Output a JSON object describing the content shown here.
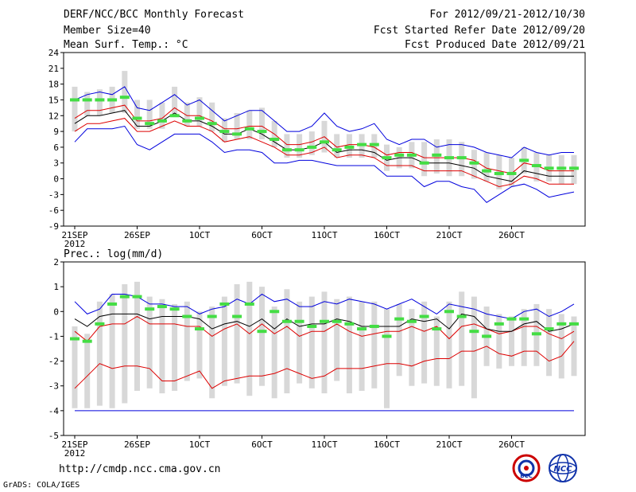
{
  "header": {
    "title": "DERF/NCC/BCC Monthly Forecast",
    "member_size": "Member Size=40",
    "variable": "Mean Surf. Temp.: °C",
    "period": "For 2012/09/21-2012/10/30",
    "started": "Fcst Started Refer Date 2012/09/20",
    "produced": "Fcst Produced Date 2012/09/21"
  },
  "footer": {
    "url": "http://cmdp.ncc.cma.gov.cn",
    "credit": "GrADS: COLA/IGES",
    "logo_bcc": "BCC",
    "logo_ncc": "NCC"
  },
  "colors": {
    "ensemble_max_min": "#0000dd",
    "percentile": "#dd0000",
    "mean": "#000000",
    "median": "#44dd44",
    "box": "#d8d8d8"
  },
  "chart_data": [
    {
      "type": "line",
      "title": "Mean Surf. Temp.: °C",
      "ylim": [
        -9,
        24
      ],
      "yticks": [
        "-9",
        "-6",
        "-3",
        "0",
        "3",
        "6",
        "9",
        "12",
        "15",
        "18",
        "21",
        "24"
      ],
      "xlim": [
        0,
        40
      ],
      "xticks": [
        {
          "day": 0,
          "label": "21SEP",
          "sub": "2012"
        },
        {
          "day": 5,
          "label": "26SEP"
        },
        {
          "day": 10,
          "label": "1OCT"
        },
        {
          "day": 15,
          "label": "6OCT"
        },
        {
          "day": 20,
          "label": "11OCT"
        },
        {
          "day": 25,
          "label": "16OCT"
        },
        {
          "day": 30,
          "label": "21OCT"
        },
        {
          "day": 35,
          "label": "26OCT"
        }
      ],
      "series": [
        {
          "name": "max",
          "color": "#0000dd",
          "values": [
            15.0,
            16.0,
            16.5,
            16.0,
            17.5,
            13.5,
            13.0,
            14.5,
            16.0,
            14.0,
            15.0,
            13.0,
            11.0,
            12.0,
            13.0,
            13.0,
            11.0,
            9.0,
            9.0,
            10.0,
            12.5,
            10.0,
            9.0,
            9.5,
            10.5,
            7.5,
            6.5,
            7.5,
            7.5,
            6.0,
            6.5,
            6.5,
            6.0,
            5.0,
            4.5,
            4.0,
            6.0,
            5.0,
            4.5,
            5.0,
            5.0
          ]
        },
        {
          "name": "upper percentile",
          "color": "#dd0000",
          "values": [
            11.5,
            13.0,
            13.0,
            13.5,
            14.0,
            11.0,
            11.0,
            11.5,
            13.5,
            12.0,
            12.0,
            11.0,
            9.5,
            9.5,
            10.0,
            10.0,
            8.5,
            6.5,
            6.5,
            7.0,
            8.0,
            6.0,
            6.5,
            6.5,
            6.0,
            4.5,
            5.0,
            5.0,
            4.0,
            4.0,
            4.0,
            4.0,
            3.5,
            2.0,
            1.5,
            1.0,
            3.0,
            2.5,
            1.5,
            1.5,
            1.5
          ]
        },
        {
          "name": "mean",
          "color": "#000000",
          "values": [
            10.5,
            12.0,
            12.0,
            12.5,
            13.0,
            10.0,
            10.0,
            11.0,
            12.5,
            11.0,
            11.0,
            10.0,
            8.5,
            8.5,
            9.5,
            8.5,
            7.0,
            5.5,
            5.5,
            6.0,
            7.0,
            5.0,
            5.5,
            5.5,
            5.0,
            3.5,
            4.0,
            4.0,
            3.0,
            3.0,
            3.0,
            2.5,
            2.0,
            0.5,
            0.0,
            -0.5,
            1.5,
            1.0,
            0.5,
            0.5,
            0.5
          ]
        },
        {
          "name": "lower percentile",
          "color": "#dd0000",
          "values": [
            9.0,
            10.5,
            10.5,
            11.0,
            11.5,
            9.0,
            9.0,
            10.0,
            11.0,
            10.0,
            10.0,
            9.0,
            7.0,
            7.5,
            8.0,
            7.0,
            6.0,
            4.5,
            4.5,
            5.0,
            6.0,
            4.0,
            4.5,
            4.5,
            4.0,
            2.5,
            2.5,
            2.5,
            1.5,
            1.5,
            1.5,
            1.5,
            0.5,
            -0.5,
            -1.5,
            -1.0,
            0.5,
            0.0,
            -1.0,
            -1.0,
            -1.0
          ]
        },
        {
          "name": "min",
          "color": "#0000dd",
          "values": [
            7.0,
            9.5,
            9.5,
            9.5,
            10.0,
            6.5,
            5.5,
            7.0,
            8.5,
            8.5,
            8.5,
            7.0,
            5.0,
            5.5,
            5.5,
            5.0,
            3.0,
            3.0,
            3.5,
            3.5,
            3.0,
            2.5,
            2.5,
            2.5,
            2.5,
            0.5,
            0.5,
            0.5,
            -1.5,
            -0.5,
            -0.5,
            -1.5,
            -2.0,
            -4.5,
            -3.0,
            -1.5,
            -1.0,
            -2.0,
            -3.5,
            -3.0,
            -2.5
          ]
        }
      ],
      "boxes": {
        "low": [
          9.0,
          12.0,
          12.0,
          12.5,
          12.5,
          9.5,
          9.5,
          9.5,
          12.0,
          10.0,
          10.0,
          9.0,
          7.0,
          7.5,
          7.5,
          7.5,
          6.0,
          4.0,
          4.0,
          4.5,
          5.0,
          4.0,
          4.0,
          4.0,
          4.0,
          1.5,
          2.0,
          2.0,
          0.5,
          1.0,
          0.5,
          0.5,
          0.0,
          -0.5,
          -2.0,
          -1.5,
          1.0,
          -0.5,
          -0.5,
          -1.0,
          -1.0
        ],
        "high": [
          17.5,
          16.5,
          17.0,
          17.5,
          20.5,
          15.0,
          15.0,
          14.5,
          17.5,
          14.5,
          15.5,
          14.5,
          11.5,
          12.5,
          13.0,
          13.5,
          11.0,
          8.5,
          8.5,
          9.0,
          11.0,
          8.5,
          8.5,
          8.5,
          8.5,
          6.5,
          6.0,
          7.0,
          7.0,
          7.5,
          7.5,
          7.0,
          5.5,
          5.0,
          4.5,
          4.0,
          6.0,
          5.0,
          4.5,
          4.5,
          4.5
        ]
      },
      "median": [
        15.0,
        15.0,
        15.0,
        15.0,
        15.5,
        11.5,
        10.5,
        11.0,
        12.0,
        11.0,
        11.5,
        10.5,
        9.0,
        8.5,
        9.5,
        9.0,
        7.5,
        5.5,
        5.5,
        6.0,
        7.0,
        5.5,
        6.0,
        6.5,
        6.5,
        4.0,
        4.5,
        4.5,
        3.0,
        4.5,
        4.0,
        4.0,
        3.0,
        1.5,
        1.0,
        1.0,
        3.5,
        2.5,
        2.0,
        2.0,
        2.0
      ]
    },
    {
      "type": "line",
      "title": "Prec.: log(mm/d)",
      "ylim": [
        -5,
        2
      ],
      "yticks": [
        "-5",
        "-4",
        "-3",
        "-2",
        "-1",
        "0",
        "1",
        "2"
      ],
      "xlim": [
        0,
        40
      ],
      "xticks": [
        {
          "day": 0,
          "label": "21SEP",
          "sub": "2012"
        },
        {
          "day": 5,
          "label": "26SEP"
        },
        {
          "day": 10,
          "label": "1OCT"
        },
        {
          "day": 15,
          "label": "6OCT"
        },
        {
          "day": 20,
          "label": "11OCT"
        },
        {
          "day": 25,
          "label": "16OCT"
        },
        {
          "day": 30,
          "label": "21OCT"
        },
        {
          "day": 35,
          "label": "26OCT"
        }
      ],
      "series": [
        {
          "name": "max",
          "color": "#0000dd",
          "values": [
            0.4,
            -0.1,
            0.1,
            0.7,
            0.7,
            0.6,
            0.3,
            0.3,
            0.2,
            0.2,
            -0.1,
            0.1,
            0.2,
            0.5,
            0.3,
            0.7,
            0.4,
            0.5,
            0.2,
            0.2,
            0.4,
            0.3,
            0.5,
            0.4,
            0.3,
            0.1,
            0.3,
            0.5,
            0.2,
            -0.1,
            0.3,
            0.2,
            0.1,
            -0.1,
            -0.2,
            -0.3,
            0.0,
            0.1,
            -0.2,
            0.0,
            0.3
          ]
        },
        {
          "name": "upper percentile",
          "color": "#dd0000",
          "values": [
            -0.8,
            -1.2,
            -0.6,
            -0.5,
            -0.5,
            -0.2,
            -0.5,
            -0.5,
            -0.5,
            -0.6,
            -0.6,
            -1.0,
            -0.7,
            -0.5,
            -0.9,
            -0.5,
            -0.9,
            -0.6,
            -1.0,
            -0.8,
            -0.8,
            -0.5,
            -0.8,
            -1.0,
            -0.9,
            -0.8,
            -0.8,
            -0.6,
            -0.8,
            -0.6,
            -1.1,
            -0.6,
            -0.5,
            -0.7,
            -0.9,
            -0.8,
            -0.6,
            -0.6,
            -0.9,
            -1.1,
            -0.8
          ]
        },
        {
          "name": "mean",
          "color": "#000000",
          "values": [
            -0.3,
            -0.6,
            -0.2,
            -0.1,
            -0.1,
            -0.1,
            -0.3,
            -0.2,
            -0.2,
            -0.2,
            -0.3,
            -0.7,
            -0.5,
            -0.4,
            -0.6,
            -0.3,
            -0.7,
            -0.3,
            -0.6,
            -0.5,
            -0.5,
            -0.3,
            -0.4,
            -0.6,
            -0.6,
            -0.6,
            -0.6,
            -0.3,
            -0.4,
            -0.3,
            -0.7,
            -0.1,
            -0.2,
            -0.7,
            -0.8,
            -0.8,
            -0.5,
            -0.4,
            -0.8,
            -0.7,
            -0.5
          ]
        },
        {
          "name": "lower percentile",
          "color": "#dd0000",
          "values": [
            -3.1,
            -2.6,
            -2.1,
            -2.3,
            -2.2,
            -2.2,
            -2.3,
            -2.8,
            -2.8,
            -2.6,
            -2.4,
            -3.1,
            -2.8,
            -2.7,
            -2.6,
            -2.6,
            -2.5,
            -2.3,
            -2.5,
            -2.7,
            -2.6,
            -2.3,
            -2.3,
            -2.3,
            -2.2,
            -2.1,
            -2.1,
            -2.2,
            -2.0,
            -1.9,
            -1.9,
            -1.6,
            -1.6,
            -1.4,
            -1.7,
            -1.8,
            -1.6,
            -1.6,
            -2.0,
            -1.8,
            -1.2
          ]
        },
        {
          "name": "min",
          "color": "#0000dd",
          "values": [
            -4,
            -4,
            -4,
            -4,
            -4,
            -4,
            -4,
            -4,
            -4,
            -4,
            -4,
            -4,
            -4,
            -4,
            -4,
            -4,
            -4,
            -4,
            -4,
            -4,
            -4,
            -4,
            -4,
            -4,
            -4,
            -4,
            -4,
            -4,
            -4,
            -4,
            -4,
            -4,
            -4,
            -4,
            -4,
            -4,
            -4,
            -4,
            -4,
            -4,
            -4
          ]
        }
      ],
      "boxes": {
        "low": [
          -3.9,
          -3.9,
          -3.8,
          -3.9,
          -3.7,
          -3.2,
          -3.1,
          -3.3,
          -3.2,
          -2.8,
          -2.7,
          -3.5,
          -3.0,
          -2.9,
          -3.4,
          -3.0,
          -3.5,
          -3.3,
          -2.9,
          -3.1,
          -3.3,
          -2.8,
          -3.3,
          -3.2,
          -3.1,
          -3.9,
          -2.6,
          -3.0,
          -2.9,
          -3.0,
          -3.1,
          -3.0,
          -3.5,
          -2.2,
          -2.3,
          -2.2,
          -2.2,
          -2.2,
          -2.6,
          -2.7,
          -2.6
        ],
        "high": [
          -0.6,
          -0.9,
          0.4,
          0.7,
          1.1,
          1.2,
          0.6,
          0.5,
          0.3,
          0.4,
          0.0,
          0.2,
          0.6,
          1.1,
          1.2,
          1.0,
          0.2,
          0.9,
          0.4,
          0.6,
          0.8,
          0.5,
          0.6,
          0.4,
          0.4,
          0.1,
          0.3,
          0.1,
          0.4,
          -0.2,
          0.4,
          0.8,
          0.6,
          0.2,
          -0.1,
          -0.2,
          0.1,
          0.3,
          0.1,
          -0.1,
          -0.2
        ]
      },
      "median": [
        -1.1,
        -1.2,
        -0.5,
        0.3,
        0.6,
        0.6,
        0.1,
        0.2,
        0.1,
        -0.2,
        -0.7,
        -0.2,
        0.3,
        -0.2,
        0.3,
        -0.8,
        0.0,
        -0.4,
        -0.4,
        -0.6,
        -0.4,
        -0.4,
        -0.5,
        -0.7,
        -0.6,
        -1.0,
        -0.3,
        -0.4,
        -0.2,
        -0.7,
        0.0,
        -0.2,
        -0.8,
        -1.0,
        -0.5,
        -0.3,
        -0.3,
        -0.9,
        -0.7,
        -0.5,
        -0.5
      ]
    }
  ]
}
